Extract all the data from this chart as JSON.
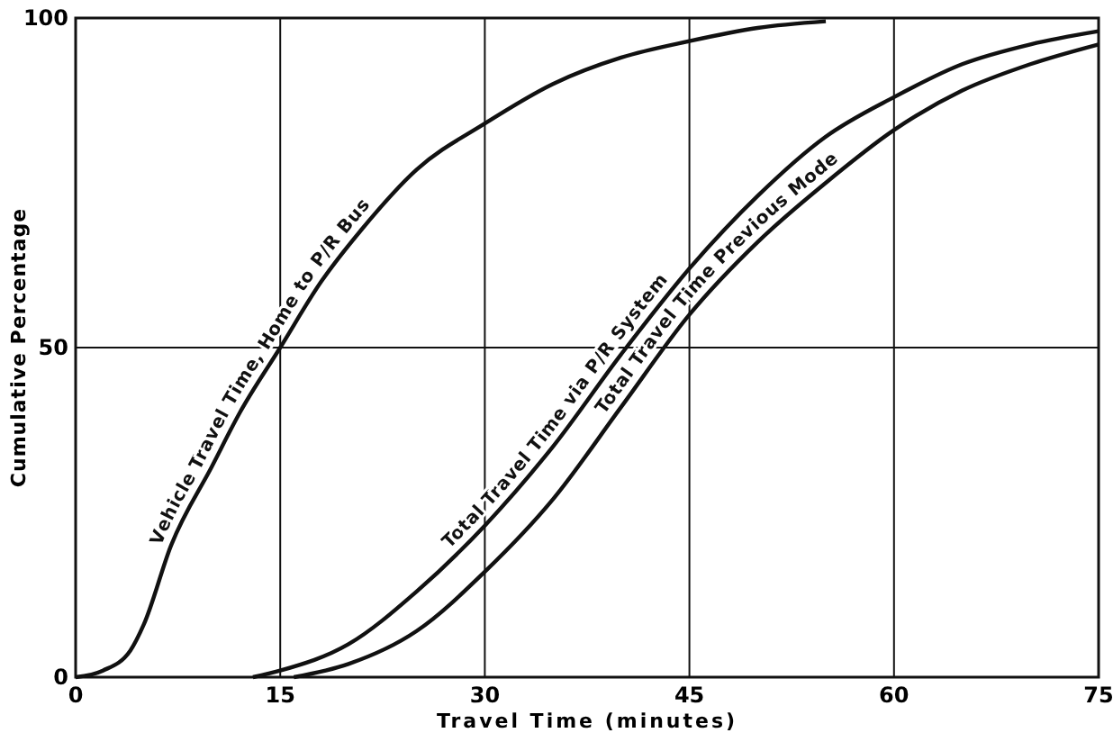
{
  "chart_data": {
    "type": "line",
    "xlabel": "Travel Time (minutes)",
    "ylabel": "Cumulative Percentage",
    "xlim": [
      0,
      75
    ],
    "ylim": [
      0,
      100
    ],
    "xticks": [
      0,
      15,
      30,
      45,
      60,
      75
    ],
    "yticks": [
      0,
      50,
      100
    ],
    "grid": true,
    "series": [
      {
        "name": "Vehicle Travel Time, Home to P/R Bus",
        "color": "#111111",
        "x": [
          0,
          2,
          4,
          5,
          7,
          10,
          12,
          15,
          18,
          21,
          25,
          30,
          35,
          40,
          45,
          50,
          55
        ],
        "values": [
          0,
          1,
          4,
          8,
          20,
          32,
          40,
          50,
          60,
          68,
          77,
          84,
          90,
          94,
          96.5,
          98.5,
          99.5
        ]
      },
      {
        "name": "Total Travel Time via P/R System",
        "color": "#111111",
        "x": [
          13,
          15,
          20,
          25,
          30,
          35,
          40,
          45,
          50,
          55,
          60,
          65,
          70,
          75
        ],
        "values": [
          0,
          1,
          5,
          13,
          23,
          35,
          49,
          62,
          73,
          82,
          88,
          93,
          96,
          98
        ]
      },
      {
        "name": "Total Travel Time Previous Mode",
        "color": "#111111",
        "x": [
          16,
          20,
          25,
          30,
          35,
          40,
          45,
          50,
          55,
          60,
          65,
          70,
          75
        ],
        "values": [
          0,
          2,
          7,
          16,
          27,
          41,
          55,
          66,
          75,
          83,
          89,
          93,
          96
        ]
      }
    ]
  }
}
